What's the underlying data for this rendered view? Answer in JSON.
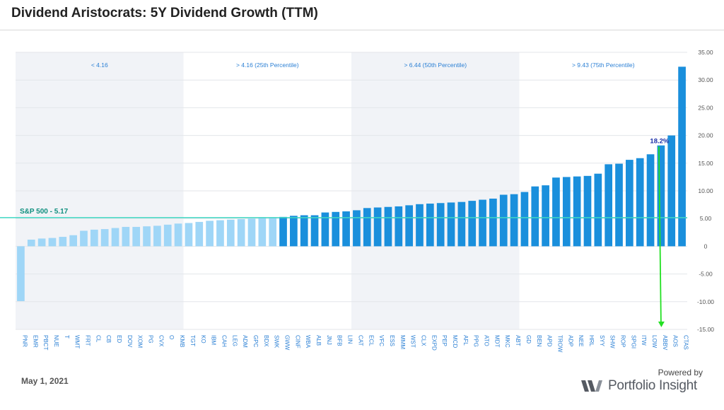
{
  "header": {
    "title": "Dividend Aristocrats: 5Y Dividend Growth (TTM)"
  },
  "footer": {
    "date": "May 1, 2021",
    "powered_by": "Powered by",
    "brand": "Portfolio Insight"
  },
  "colors": {
    "light_bar": "#9fd6f7",
    "dark_bar": "#1a8fdc",
    "band_shade": "#f1f3f7",
    "band_label": "#2a7fd4",
    "sp500_line": "#3fd6c2",
    "sp500_label": "#0e8f7e",
    "arrow": "#22e022",
    "annotation": "#1c2fa8"
  },
  "chart_data": {
    "type": "bar",
    "categories": [
      "PNR",
      "EMR",
      "PBCT",
      "NUE",
      "T",
      "WMT",
      "FRT",
      "CL",
      "CB",
      "ED",
      "DOV",
      "XOM",
      "PG",
      "CVX",
      "O",
      "KMB",
      "TGT",
      "KO",
      "IBM",
      "CAH",
      "LEG",
      "ADM",
      "GPC",
      "BDX",
      "SWK",
      "GWW",
      "CINF",
      "WBA",
      "ALB",
      "JNJ",
      "BFB",
      "LIN",
      "CAT",
      "ECL",
      "VFC",
      "ESS",
      "MMM",
      "WST",
      "CLX",
      "EXPD",
      "PEP",
      "MCD",
      "AFL",
      "PPG",
      "ATO",
      "MDT",
      "MKC",
      "ABT",
      "GD",
      "BEN",
      "APD",
      "TROW",
      "ADP",
      "NEE",
      "HRL",
      "SYY",
      "SHW",
      "ROP",
      "SPGI",
      "ITW",
      "LOW",
      "ABBV",
      "AOS",
      "CTAS"
    ],
    "values": [
      -9.9,
      1.2,
      1.4,
      1.5,
      1.7,
      2.0,
      2.8,
      3.0,
      3.1,
      3.3,
      3.5,
      3.5,
      3.6,
      3.7,
      3.9,
      4.1,
      4.2,
      4.4,
      4.6,
      4.7,
      4.8,
      4.9,
      5.0,
      5.1,
      5.2,
      5.3,
      5.5,
      5.6,
      5.6,
      6.1,
      6.2,
      6.3,
      6.5,
      6.9,
      7.0,
      7.1,
      7.2,
      7.4,
      7.6,
      7.7,
      7.8,
      7.9,
      8.0,
      8.2,
      8.4,
      8.6,
      9.3,
      9.4,
      9.8,
      10.8,
      11.0,
      12.4,
      12.5,
      12.6,
      12.7,
      13.1,
      14.8,
      14.9,
      15.6,
      15.9,
      16.6,
      18.2,
      20.0,
      32.4
    ],
    "shade_from_index": 25,
    "ylim": [
      -15,
      35
    ],
    "yticks": [
      -15,
      -10,
      -5,
      0,
      5,
      10,
      15,
      20,
      25,
      30,
      35
    ],
    "ytick_labels": [
      "-15.00",
      "-10.00",
      "-5.00",
      "0",
      "5.00",
      "10.00",
      "15.00",
      "20.00",
      "25.00",
      "30.00",
      "35.00"
    ],
    "bands": [
      {
        "label": "< 4.16",
        "start": 0,
        "end": 15,
        "shaded": true
      },
      {
        "label": "> 4.16 (25th Percentile)",
        "start": 16,
        "end": 31,
        "shaded": false
      },
      {
        "label": "> 6.44 (50th Percentile)",
        "start": 32,
        "end": 47,
        "shaded": true
      },
      {
        "label": "> 9.43 (75th Percentile)",
        "start": 48,
        "end": 63,
        "shaded": false
      }
    ],
    "reference_line": {
      "label": "S&P 500 - 5.17",
      "value": 5.17
    },
    "annotation": {
      "label": "18.2%",
      "category": "ABBV",
      "value": 18.2,
      "arrow_to": -14.6
    },
    "grid": true,
    "legend": "none"
  }
}
